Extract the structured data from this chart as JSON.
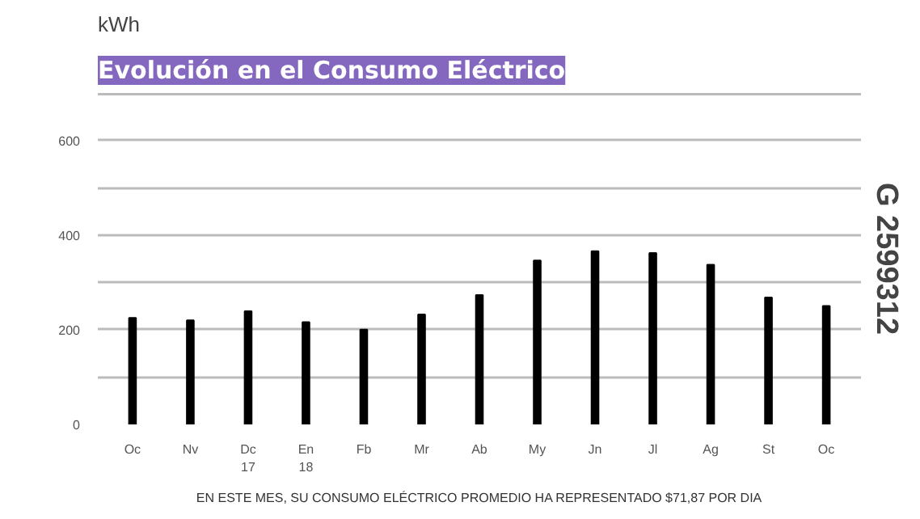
{
  "chart_data": {
    "type": "bar",
    "title": "Evolución en el Consumo Eléctrico",
    "ylabel": "kWh",
    "categories": [
      "Oc",
      "Nv",
      "Dc\n17",
      "En\n18",
      "Fb",
      "Mr",
      "Ab",
      "My",
      "Jn",
      "Jl",
      "Ag",
      "St",
      "Oc"
    ],
    "values": [
      225,
      220,
      239,
      216,
      200,
      232,
      273,
      346,
      366,
      362,
      337,
      268,
      250
    ],
    "color": "#000000",
    "ylim": [
      0,
      700
    ],
    "yticks": [
      0,
      {
        "value": 100,
        "label": null
      },
      200,
      {
        "value": 300,
        "label": null
      },
      400,
      {
        "value": 500,
        "label": null
      },
      600,
      {
        "value": 700,
        "label": null
      }
    ],
    "grid": "y",
    "annotations": [
      "G 2599312",
      "EN ESTE MES, SU CONSUMO ELÉCTRICO PROMEDIO HA REPRESENTADO $71,87 POR DIA"
    ]
  }
}
